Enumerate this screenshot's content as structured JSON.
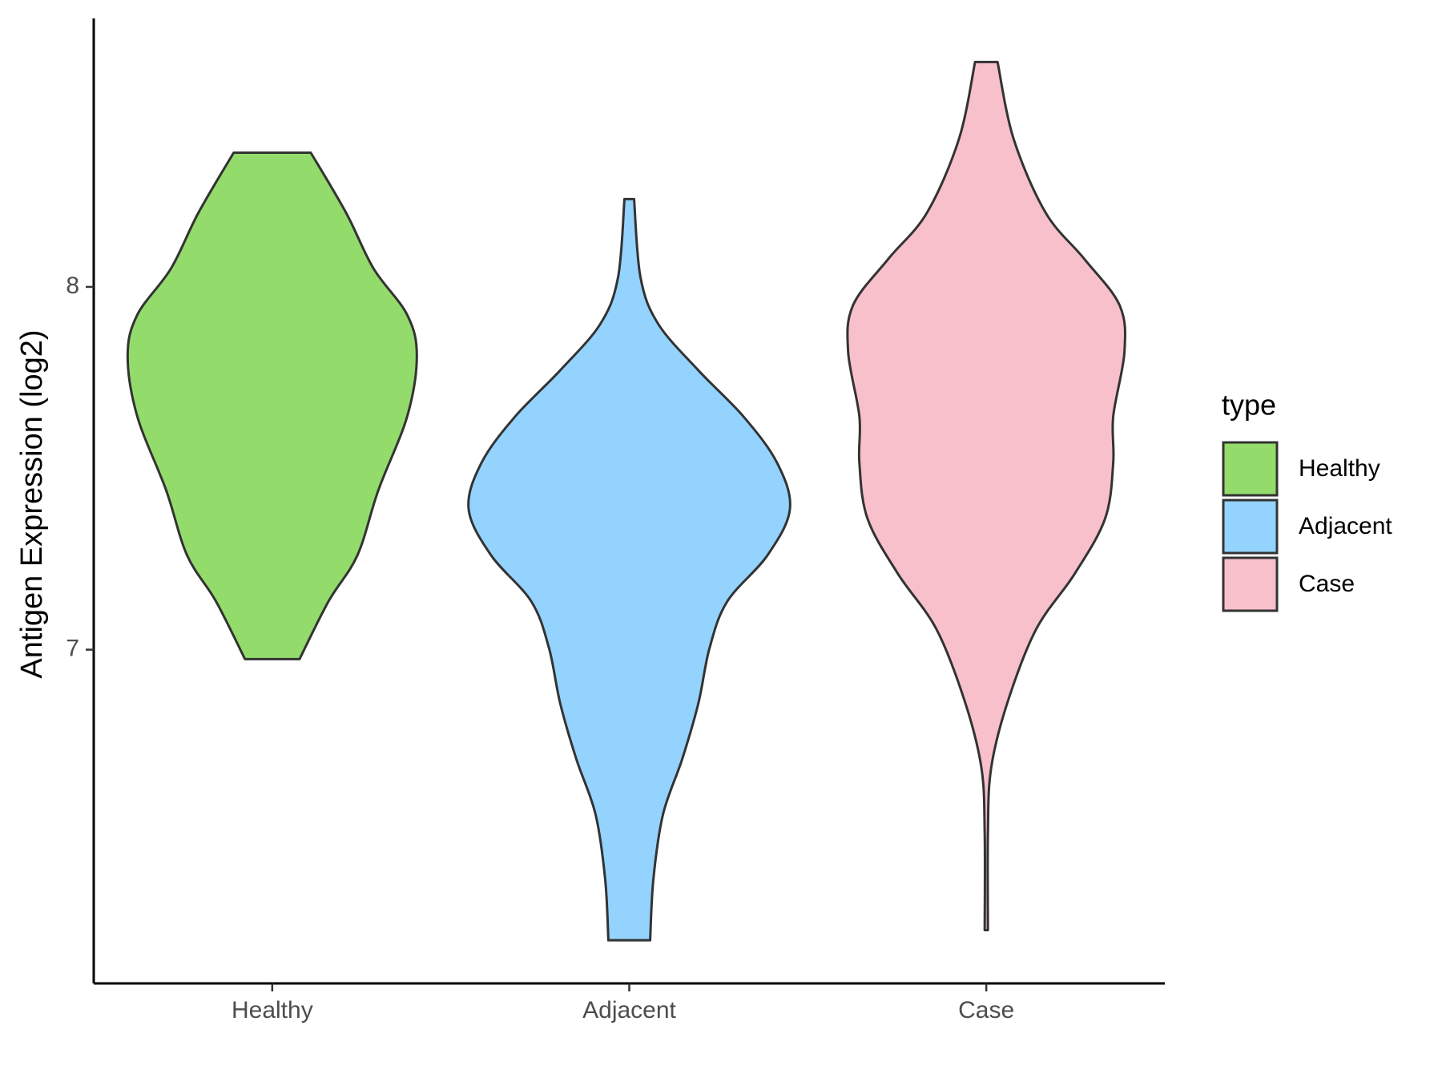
{
  "chart_data": {
    "type": "violin",
    "y_label": "Antigen Expression (log2)",
    "categories": [
      "Healthy",
      "Adjacent",
      "Case"
    ],
    "legend_title": "type",
    "legend": "right",
    "ylim": [
      6.08,
      8.74
    ],
    "yticks": [
      7,
      8
    ],
    "series": [
      {
        "name": "Healthy",
        "color": "#93dc6b",
        "y": [
          8.37,
          8.204,
          8.051,
          7.923,
          7.809,
          7.643,
          7.439,
          7.26,
          7.133,
          6.974
        ],
        "density": [
          0.24,
          0.46,
          0.63,
          0.84,
          0.9,
          0.84,
          0.66,
          0.53,
          0.35,
          0.17
        ]
      },
      {
        "name": "Adjacent",
        "color": "#93d3fe",
        "y": [
          8.242,
          8.026,
          7.898,
          7.77,
          7.643,
          7.515,
          7.388,
          7.26,
          7.133,
          7.005,
          6.852,
          6.699,
          6.546,
          6.367,
          6.199
        ],
        "density": [
          0.03,
          0.07,
          0.18,
          0.43,
          0.71,
          0.92,
          1.0,
          0.86,
          0.61,
          0.5,
          0.43,
          0.33,
          0.21,
          0.15,
          0.13
        ]
      },
      {
        "name": "Case",
        "color": "#f8c0cb",
        "y": [
          8.62,
          8.408,
          8.204,
          8.077,
          7.949,
          7.821,
          7.643,
          7.515,
          7.362,
          7.209,
          7.056,
          6.852,
          6.673,
          6.495,
          6.227
        ],
        "density": [
          0.07,
          0.17,
          0.37,
          0.61,
          0.83,
          0.86,
          0.79,
          0.79,
          0.74,
          0.55,
          0.31,
          0.13,
          0.03,
          0.01,
          0.01
        ]
      }
    ]
  }
}
